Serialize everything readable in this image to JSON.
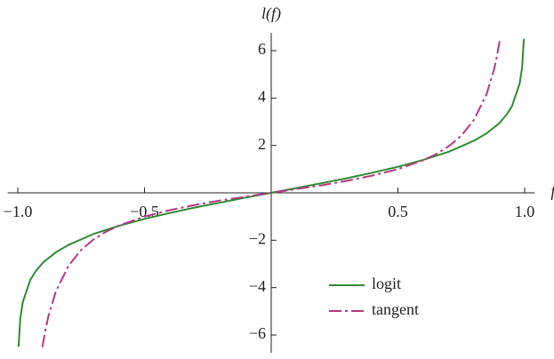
{
  "chart_data": {
    "type": "line",
    "xlabel": "f",
    "ylabel": "l(f)",
    "xlim": [
      -1.04,
      1.04
    ],
    "ylim": [
      -6.75,
      6.75
    ],
    "xticks": [
      {
        "value": -1,
        "label": "−1.0"
      },
      {
        "value": -0.5,
        "label": "−0.5"
      },
      0.5,
      {
        "value": 1,
        "label": "1.0"
      }
    ],
    "yticks": [
      {
        "value": -6,
        "label": "−6"
      },
      {
        "value": -4,
        "label": "−4"
      },
      {
        "value": -2,
        "label": "−2"
      },
      2,
      4,
      6
    ],
    "legend": "lower right",
    "series": [
      {
        "name": "logit",
        "color": "#2f8a34",
        "dash": "solid",
        "x": [
          -0.997,
          -0.99,
          -0.98,
          -0.95,
          -0.93,
          -0.9,
          -0.85,
          -0.8,
          -0.7,
          -0.6,
          -0.5,
          -0.4,
          -0.3,
          -0.2,
          -0.1,
          0,
          0.1,
          0.2,
          0.3,
          0.4,
          0.5,
          0.6,
          0.7,
          0.8,
          0.85,
          0.9,
          0.93,
          0.95,
          0.98,
          0.99,
          0.997
        ],
        "values": [
          -6.5,
          -5.29,
          -4.6,
          -3.66,
          -3.32,
          -2.94,
          -2.51,
          -2.2,
          -1.73,
          -1.39,
          -1.1,
          -0.85,
          -0.62,
          -0.41,
          -0.2,
          0,
          0.2,
          0.41,
          0.62,
          0.85,
          1.1,
          1.39,
          1.73,
          2.2,
          2.51,
          2.94,
          3.32,
          3.66,
          4.6,
          5.29,
          6.5
        ]
      },
      {
        "name": "tangent",
        "color": "#b23a80",
        "dash": "dashed",
        "x": [
          -0.903,
          -0.89,
          -0.88,
          -0.85,
          -0.8,
          -0.75,
          -0.7,
          -0.65,
          -0.6,
          -0.5,
          -0.4,
          -0.3,
          -0.2,
          -0.1,
          0,
          0.1,
          0.2,
          0.3,
          0.4,
          0.5,
          0.6,
          0.65,
          0.7,
          0.75,
          0.8,
          0.85,
          0.88,
          0.89,
          0.903
        ],
        "values": [
          -6.51,
          -5.74,
          -5.24,
          -4.17,
          -3.08,
          -2.41,
          -1.96,
          -1.63,
          -1.38,
          -1.0,
          -0.73,
          -0.51,
          -0.32,
          -0.16,
          0,
          0.16,
          0.32,
          0.51,
          0.73,
          1.0,
          1.38,
          1.63,
          1.96,
          2.41,
          3.08,
          4.17,
          5.24,
          5.74,
          6.51
        ]
      }
    ]
  }
}
